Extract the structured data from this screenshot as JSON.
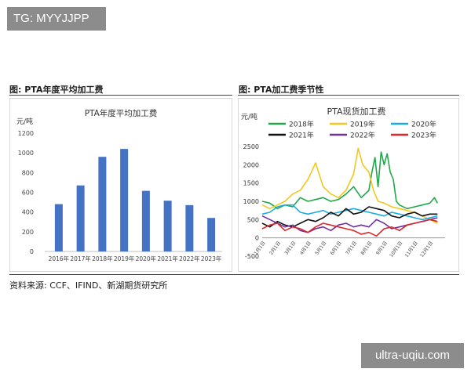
{
  "watermarks": {
    "top": "TG: MYYJJPP",
    "bottom": "ultra-uqiu.com"
  },
  "figures": {
    "left_title": "图: PTA年度平均加工费",
    "right_title": "图: PTA加工费季节性"
  },
  "source": "资料来源: CCF、IFIND、新湖期货研究所",
  "colors": {
    "bar": "#4472c4",
    "s2018": "#22a84a",
    "s2019": "#f2c81f",
    "s2020": "#1aaee0",
    "s2021": "#111111",
    "s2022": "#7030a0",
    "s2023": "#e0262b"
  },
  "chart_data": [
    {
      "type": "bar",
      "title": "PTA年度平均加工费",
      "ylabel": "元/吨",
      "categories": [
        "2016年",
        "2017年",
        "2018年",
        "2019年",
        "2020年",
        "2021年",
        "2022年",
        "2023年"
      ],
      "values": [
        480,
        670,
        960,
        1040,
        615,
        515,
        470,
        340
      ],
      "ylim": [
        0,
        1200
      ],
      "yticks": [
        "0",
        "200",
        "400",
        "600",
        "800",
        "1000",
        "1200"
      ],
      "grid": false
    },
    {
      "type": "line",
      "title": "PTA现货加工费",
      "ylabel": "元/吨",
      "ylim": [
        -500,
        2500
      ],
      "yticks": [
        "-500",
        "0",
        "500",
        "1000",
        "1500",
        "2000",
        "2500"
      ],
      "xticks": [
        "1月1日",
        "2月1日",
        "3月1日",
        "4月1日",
        "5月1日",
        "6月1日",
        "7月1日",
        "8月1日",
        "9月1日",
        "10月1日",
        "11月1日",
        "12月1日"
      ],
      "legend_position": "top",
      "series": [
        {
          "name": "2018年",
          "color_key": "s2018",
          "points": [
            [
              0,
              1000
            ],
            [
              0.5,
              950
            ],
            [
              1,
              800
            ],
            [
              1.5,
              900
            ],
            [
              2,
              850
            ],
            [
              2.5,
              1100
            ],
            [
              3,
              1000
            ],
            [
              3.5,
              1050
            ],
            [
              4,
              1100
            ],
            [
              4.5,
              1000
            ],
            [
              5,
              1050
            ],
            [
              5.5,
              1200
            ],
            [
              6,
              1400
            ],
            [
              6.5,
              1100
            ],
            [
              7,
              1300
            ],
            [
              7.2,
              1800
            ],
            [
              7.4,
              2200
            ],
            [
              7.6,
              1400
            ],
            [
              7.8,
              2350
            ],
            [
              8,
              2000
            ],
            [
              8.2,
              2300
            ],
            [
              8.4,
              1800
            ],
            [
              8.6,
              1600
            ],
            [
              8.8,
              1000
            ],
            [
              9,
              900
            ],
            [
              9.5,
              800
            ],
            [
              10,
              850
            ],
            [
              10.5,
              900
            ],
            [
              11,
              950
            ],
            [
              11.3,
              1100
            ],
            [
              11.5,
              950
            ]
          ]
        },
        {
          "name": "2019年",
          "color_key": "s2019",
          "points": [
            [
              0,
              900
            ],
            [
              0.5,
              800
            ],
            [
              1,
              900
            ],
            [
              1.5,
              1000
            ],
            [
              2,
              1200
            ],
            [
              2.5,
              1300
            ],
            [
              3,
              1600
            ],
            [
              3.5,
              2050
            ],
            [
              4,
              1400
            ],
            [
              4.5,
              1200
            ],
            [
              5,
              1100
            ],
            [
              5.5,
              1300
            ],
            [
              6,
              1750
            ],
            [
              6.3,
              2450
            ],
            [
              6.6,
              2000
            ],
            [
              7,
              1800
            ],
            [
              7.3,
              1300
            ],
            [
              7.6,
              1000
            ],
            [
              8,
              950
            ],
            [
              8.5,
              850
            ],
            [
              9,
              800
            ],
            [
              9.5,
              750
            ],
            [
              10,
              700
            ],
            [
              10.5,
              600
            ],
            [
              11,
              500
            ],
            [
              11.5,
              400
            ]
          ]
        },
        {
          "name": "2020年",
          "color_key": "s2020",
          "points": [
            [
              0,
              650
            ],
            [
              0.5,
              700
            ],
            [
              1,
              850
            ],
            [
              1.5,
              900
            ],
            [
              2,
              900
            ],
            [
              2.5,
              700
            ],
            [
              3,
              650
            ],
            [
              3.5,
              700
            ],
            [
              4,
              750
            ],
            [
              4.5,
              650
            ],
            [
              5,
              700
            ],
            [
              5.5,
              750
            ],
            [
              6,
              800
            ],
            [
              6.5,
              750
            ],
            [
              7,
              700
            ],
            [
              7.5,
              650
            ],
            [
              8,
              600
            ],
            [
              8.5,
              700
            ],
            [
              9,
              650
            ],
            [
              9.5,
              600
            ],
            [
              10,
              550
            ],
            [
              10.5,
              500
            ],
            [
              11,
              550
            ],
            [
              11.5,
              600
            ]
          ]
        },
        {
          "name": "2021年",
          "color_key": "s2021",
          "points": [
            [
              0,
              400
            ],
            [
              0.5,
              300
            ],
            [
              1,
              450
            ],
            [
              1.5,
              350
            ],
            [
              2,
              300
            ],
            [
              2.5,
              400
            ],
            [
              3,
              500
            ],
            [
              3.5,
              450
            ],
            [
              4,
              550
            ],
            [
              4.5,
              700
            ],
            [
              5,
              600
            ],
            [
              5.5,
              800
            ],
            [
              6,
              650
            ],
            [
              6.5,
              700
            ],
            [
              7,
              850
            ],
            [
              7.5,
              800
            ],
            [
              8,
              750
            ],
            [
              8.5,
              600
            ],
            [
              9,
              550
            ],
            [
              9.5,
              650
            ],
            [
              10,
              700
            ],
            [
              10.5,
              600
            ],
            [
              11,
              650
            ],
            [
              11.5,
              650
            ]
          ]
        },
        {
          "name": "2022年",
          "color_key": "s2022",
          "points": [
            [
              0,
              600
            ],
            [
              0.5,
              500
            ],
            [
              1,
              400
            ],
            [
              1.5,
              300
            ],
            [
              2,
              350
            ],
            [
              2.5,
              200
            ],
            [
              3,
              150
            ],
            [
              3.5,
              250
            ],
            [
              4,
              300
            ],
            [
              4.5,
              200
            ],
            [
              5,
              350
            ],
            [
              5.5,
              400
            ],
            [
              6,
              300
            ],
            [
              6.5,
              350
            ],
            [
              7,
              300
            ],
            [
              7.5,
              500
            ],
            [
              8,
              400
            ],
            [
              8.5,
              250
            ],
            [
              9,
              300
            ],
            [
              9.5,
              350
            ],
            [
              10,
              400
            ],
            [
              10.5,
              450
            ],
            [
              11,
              500
            ],
            [
              11.5,
              550
            ]
          ]
        },
        {
          "name": "2023年",
          "color_key": "s2023",
          "points": [
            [
              0,
              250
            ],
            [
              0.5,
              350
            ],
            [
              1,
              400
            ],
            [
              1.5,
              200
            ],
            [
              2,
              300
            ],
            [
              2.5,
              250
            ],
            [
              3,
              150
            ],
            [
              3.5,
              300
            ],
            [
              4,
              400
            ],
            [
              4.5,
              350
            ],
            [
              5,
              300
            ],
            [
              5.5,
              250
            ],
            [
              6,
              200
            ],
            [
              6.5,
              100
            ],
            [
              7,
              150
            ],
            [
              7.5,
              50
            ],
            [
              8,
              250
            ],
            [
              8.5,
              300
            ],
            [
              9,
              200
            ],
            [
              9.5,
              350
            ],
            [
              10,
              400
            ],
            [
              10.5,
              450
            ],
            [
              11,
              500
            ],
            [
              11.5,
              450
            ]
          ]
        }
      ]
    }
  ]
}
